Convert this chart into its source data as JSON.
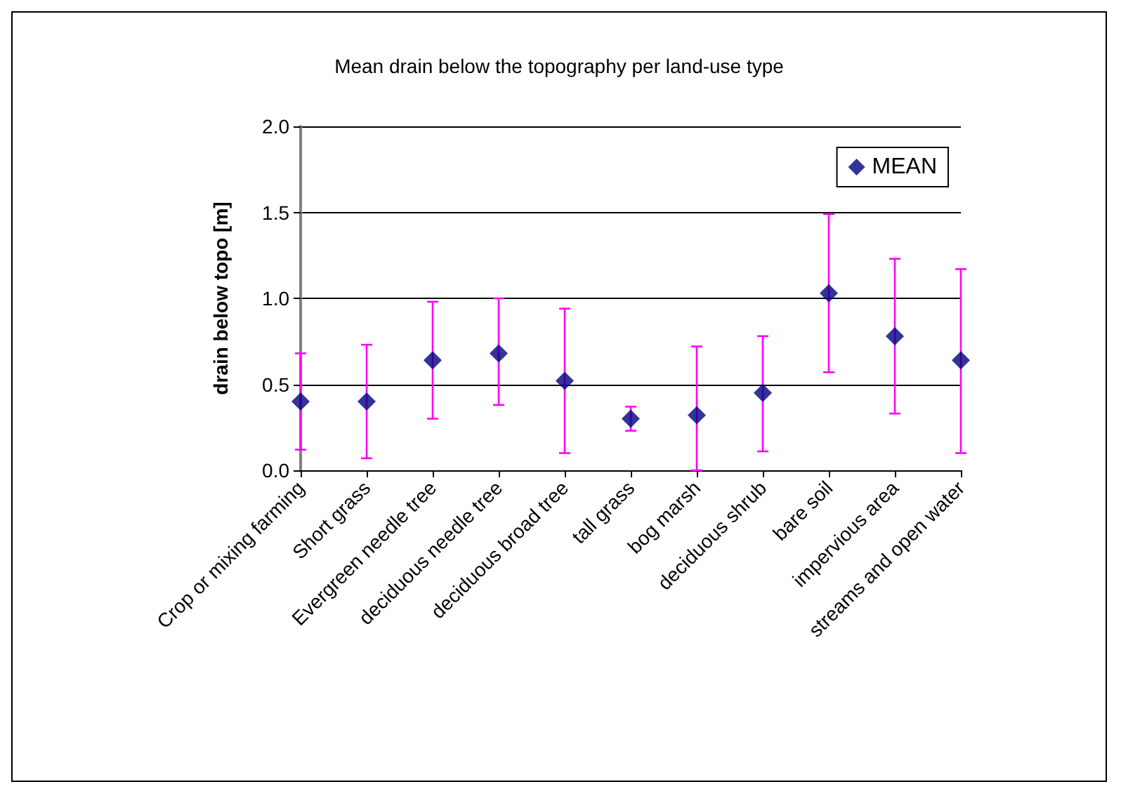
{
  "chart_data": {
    "type": "scatter",
    "title": "Mean drain below the topography per land-use type",
    "ylabel": "drain below topo [m]",
    "categories": [
      "Crop or mixing farming",
      "Short grass",
      "Evergreen needle tree",
      "deciduous needle tree",
      "deciduous broad tree",
      "tall grass",
      "bog marsh",
      "deciduous shrub",
      "bare soil",
      "impervious area",
      "streams and open water"
    ],
    "series": [
      {
        "name": "MEAN",
        "color": "#000080",
        "values": [
          0.4,
          0.4,
          0.64,
          0.68,
          0.52,
          0.3,
          0.32,
          0.45,
          1.03,
          0.78,
          0.64
        ],
        "errors": [
          [
            0.12,
            0.68
          ],
          [
            0.07,
            0.73
          ],
          [
            0.3,
            0.98
          ],
          [
            0.38,
            1.0
          ],
          [
            0.1,
            0.94
          ],
          [
            0.23,
            0.37
          ],
          [
            0.0,
            0.72
          ],
          [
            0.11,
            0.78
          ],
          [
            0.57,
            1.49
          ],
          [
            0.33,
            1.23
          ],
          [
            0.1,
            1.17
          ]
        ]
      }
    ],
    "ylim": [
      0,
      2
    ],
    "yticks": [
      {
        "value": 0,
        "label": "0.0"
      },
      {
        "value": 0.5,
        "label": "0.5"
      },
      {
        "value": 1,
        "label": "1.0"
      },
      {
        "value": 1.5,
        "label": "1.5"
      },
      {
        "value": 2,
        "label": "2.0"
      }
    ],
    "grid": "y",
    "legend": "top right",
    "marker": "diamond"
  }
}
